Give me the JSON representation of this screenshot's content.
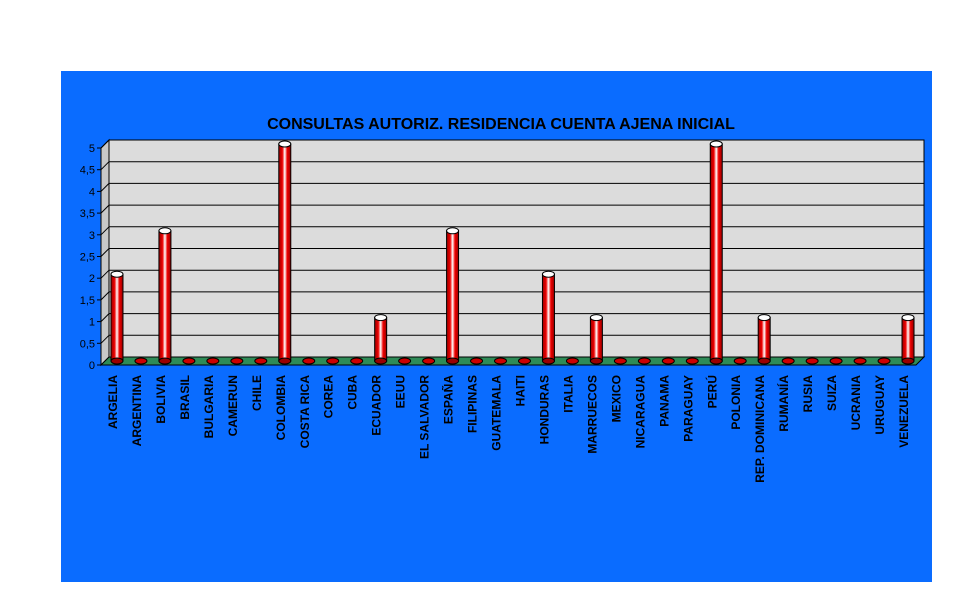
{
  "chart_data": {
    "type": "bar",
    "title": "CONSULTAS AUTORIZ. RESIDENCIA CUENTA AJENA INICIAL",
    "xlabel": "",
    "ylabel": "",
    "ylim": [
      0,
      5
    ],
    "yticks": [
      "0",
      "0,5",
      "1",
      "1,5",
      "2",
      "2,5",
      "3",
      "3,5",
      "4",
      "4,5",
      "5"
    ],
    "grid": true,
    "legend": "none",
    "categories": [
      "ARGELIA",
      "ARGENTINA",
      "BOLIVIA",
      "BRASIL",
      "BULGARIA",
      "CAMERUN",
      "CHILE",
      "COLOMBIA",
      "COSTA RICA",
      "COREA",
      "CUBA",
      "ECUADOR",
      "EEUU",
      "EL SALVADOR",
      "ESPAÑA",
      "FILIPINAS",
      "GUATEMALA",
      "HAITI",
      "HONDURAS",
      "ITALIA",
      "MARRUECOS",
      "MEXICO",
      "NICARAGUA",
      "PANAMA",
      "PARAGUAY",
      "PERÚ",
      "POLONIA",
      "REP. DOMINICANA",
      "RUMANÍA",
      "RUSIA",
      "SUIZA",
      "UCRANIA",
      "URUGUAY",
      "VENEZUELA"
    ],
    "values": [
      2,
      0,
      3,
      0,
      0,
      0,
      0,
      5,
      0,
      0,
      0,
      1,
      0,
      0,
      3,
      0,
      0,
      0,
      2,
      0,
      1,
      0,
      0,
      0,
      0,
      5,
      0,
      1,
      0,
      0,
      0,
      0,
      0,
      1
    ],
    "colors": {
      "background": "#0a6cff",
      "plot_area": "#dcdcdc",
      "floor": "#2e8b57",
      "bar": "#ee0000",
      "bar_highlight": "#ffffff"
    }
  }
}
